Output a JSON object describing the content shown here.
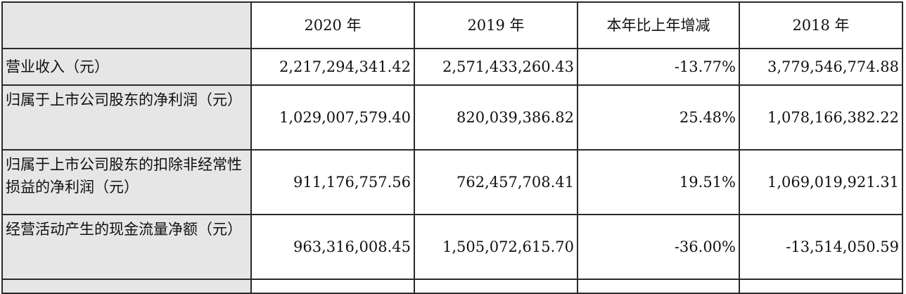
{
  "table": {
    "headers": [
      "",
      "2020 年",
      "2019 年",
      "本年比上年增减",
      "2018 年"
    ],
    "rows": [
      {
        "label": "营业收入（元）",
        "values": [
          "2,217,294,341.42",
          "2,571,433,260.43",
          "-13.77%",
          "3,779,546,774.88"
        ]
      },
      {
        "label": "归属于上市公司股东的净利润（元）",
        "values": [
          "1,029,007,579.40",
          "820,039,386.82",
          "25.48%",
          "1,078,166,382.22"
        ]
      },
      {
        "label": "归属于上市公司股东的扣除非经常性损益的净利润（元）",
        "values": [
          "911,176,757.56",
          "762,457,708.41",
          "19.51%",
          "1,069,019,921.31"
        ]
      },
      {
        "label": "经营活动产生的现金流量净额（元）",
        "values": [
          "963,316,008.45",
          "1,505,072,615.70",
          "-36.00%",
          "-13,514,050.59"
        ]
      }
    ]
  }
}
